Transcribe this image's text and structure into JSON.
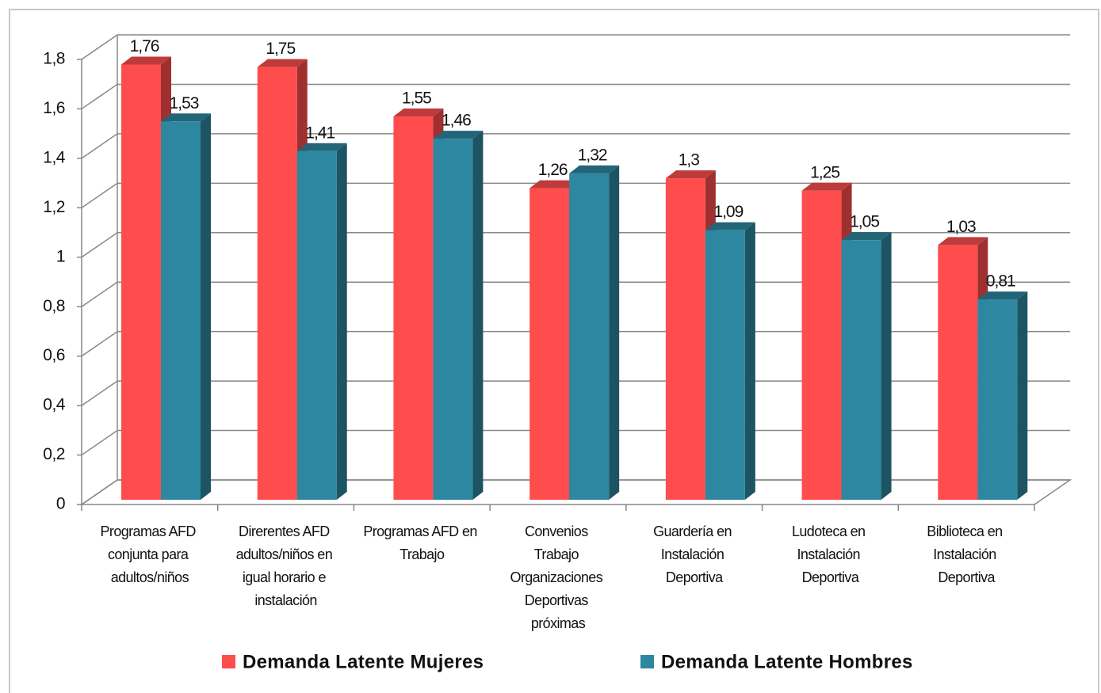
{
  "chart_data": {
    "type": "bar",
    "categories": [
      "Programas AFD conjunta para adultos/niños",
      "Direrentes AFD adultos/niños en igual horario e instalación",
      "Programas AFD en Trabajo",
      "Convenios Trabajo Organizaciones Deportivas próximas",
      "Guardería en Instalación Deportiva",
      "Ludoteca en Instalación Deportiva",
      "Biblioteca en Instalación Deportiva"
    ],
    "series": [
      {
        "name": "Demanda Latente Mujeres",
        "color": "#ff4d4d",
        "values": [
          1.76,
          1.75,
          1.55,
          1.26,
          1.3,
          1.25,
          1.03
        ],
        "value_labels": [
          "1,76",
          "1,75",
          "1,55",
          "1,26",
          "1,3",
          "1,25",
          "1,03"
        ]
      },
      {
        "name": "Demanda Latente Hombres",
        "color": "#2e87a0",
        "values": [
          1.53,
          1.41,
          1.46,
          1.32,
          1.09,
          1.05,
          0.81
        ],
        "value_labels": [
          "1,53",
          "1,41",
          "1,46",
          "1,32",
          "1,09",
          "1,05",
          "0,81"
        ]
      }
    ],
    "ylim": [
      0,
      1.8
    ],
    "yticks": [
      0,
      {
        "value": 0.2,
        "label": "0,2"
      },
      {
        "value": 0.4,
        "label": "0,4"
      },
      {
        "value": 0.6,
        "label": "0,6"
      },
      {
        "value": 0.8,
        "label": "0,8"
      },
      1,
      {
        "value": 1.2,
        "label": "1,2"
      },
      {
        "value": 1.4,
        "label": "1,4"
      },
      {
        "value": 1.6,
        "label": "1,6"
      },
      {
        "value": 1.8,
        "label": "1,8"
      }
    ],
    "grid": true,
    "legend": "bottom"
  }
}
